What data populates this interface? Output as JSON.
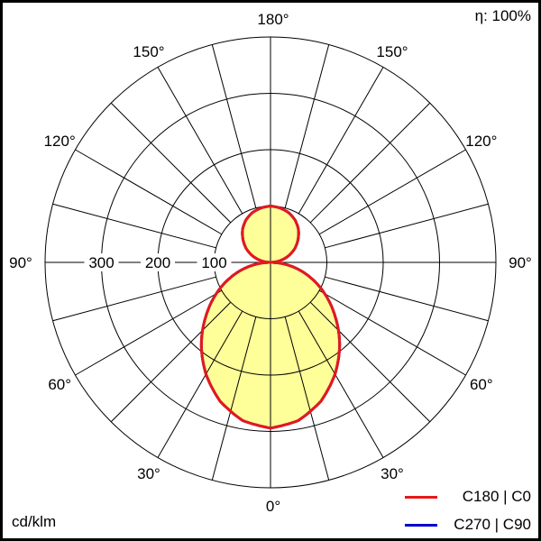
{
  "efficiency_label": "η: 100%",
  "unit_label": "cd/klm",
  "legend": [
    {
      "label": "C180 | C0",
      "color": "#e61919"
    },
    {
      "label": "C270 | C90",
      "color": "#0000cc"
    }
  ],
  "chart_data": {
    "type": "polar",
    "radial_ticks": [
      100,
      200,
      300
    ],
    "radial_max": 400,
    "angle_ticks": [
      "0°",
      "30°",
      "60°",
      "90°",
      "120°",
      "150°",
      "180°"
    ],
    "angle_grid_step_deg": 15,
    "fill_color": "#ffff99",
    "angles_deg": [
      0,
      10,
      20,
      30,
      40,
      50,
      60,
      70,
      80,
      90,
      100,
      110,
      120,
      130,
      140,
      150,
      160,
      170,
      180
    ],
    "series": [
      {
        "name": "C180 | C0",
        "color": "#e61919",
        "values": [
          294,
          285,
          262,
          229,
          191,
          150,
          111,
          73,
          36,
          0,
          17,
          34,
          50,
          64,
          77,
          87,
          94,
          98,
          100
        ]
      },
      {
        "name": "C270 | C90",
        "color": "#0000cc",
        "values": [
          294,
          285,
          262,
          229,
          191,
          150,
          111,
          73,
          36,
          0,
          17,
          34,
          50,
          64,
          77,
          87,
          94,
          98,
          100
        ]
      }
    ]
  }
}
